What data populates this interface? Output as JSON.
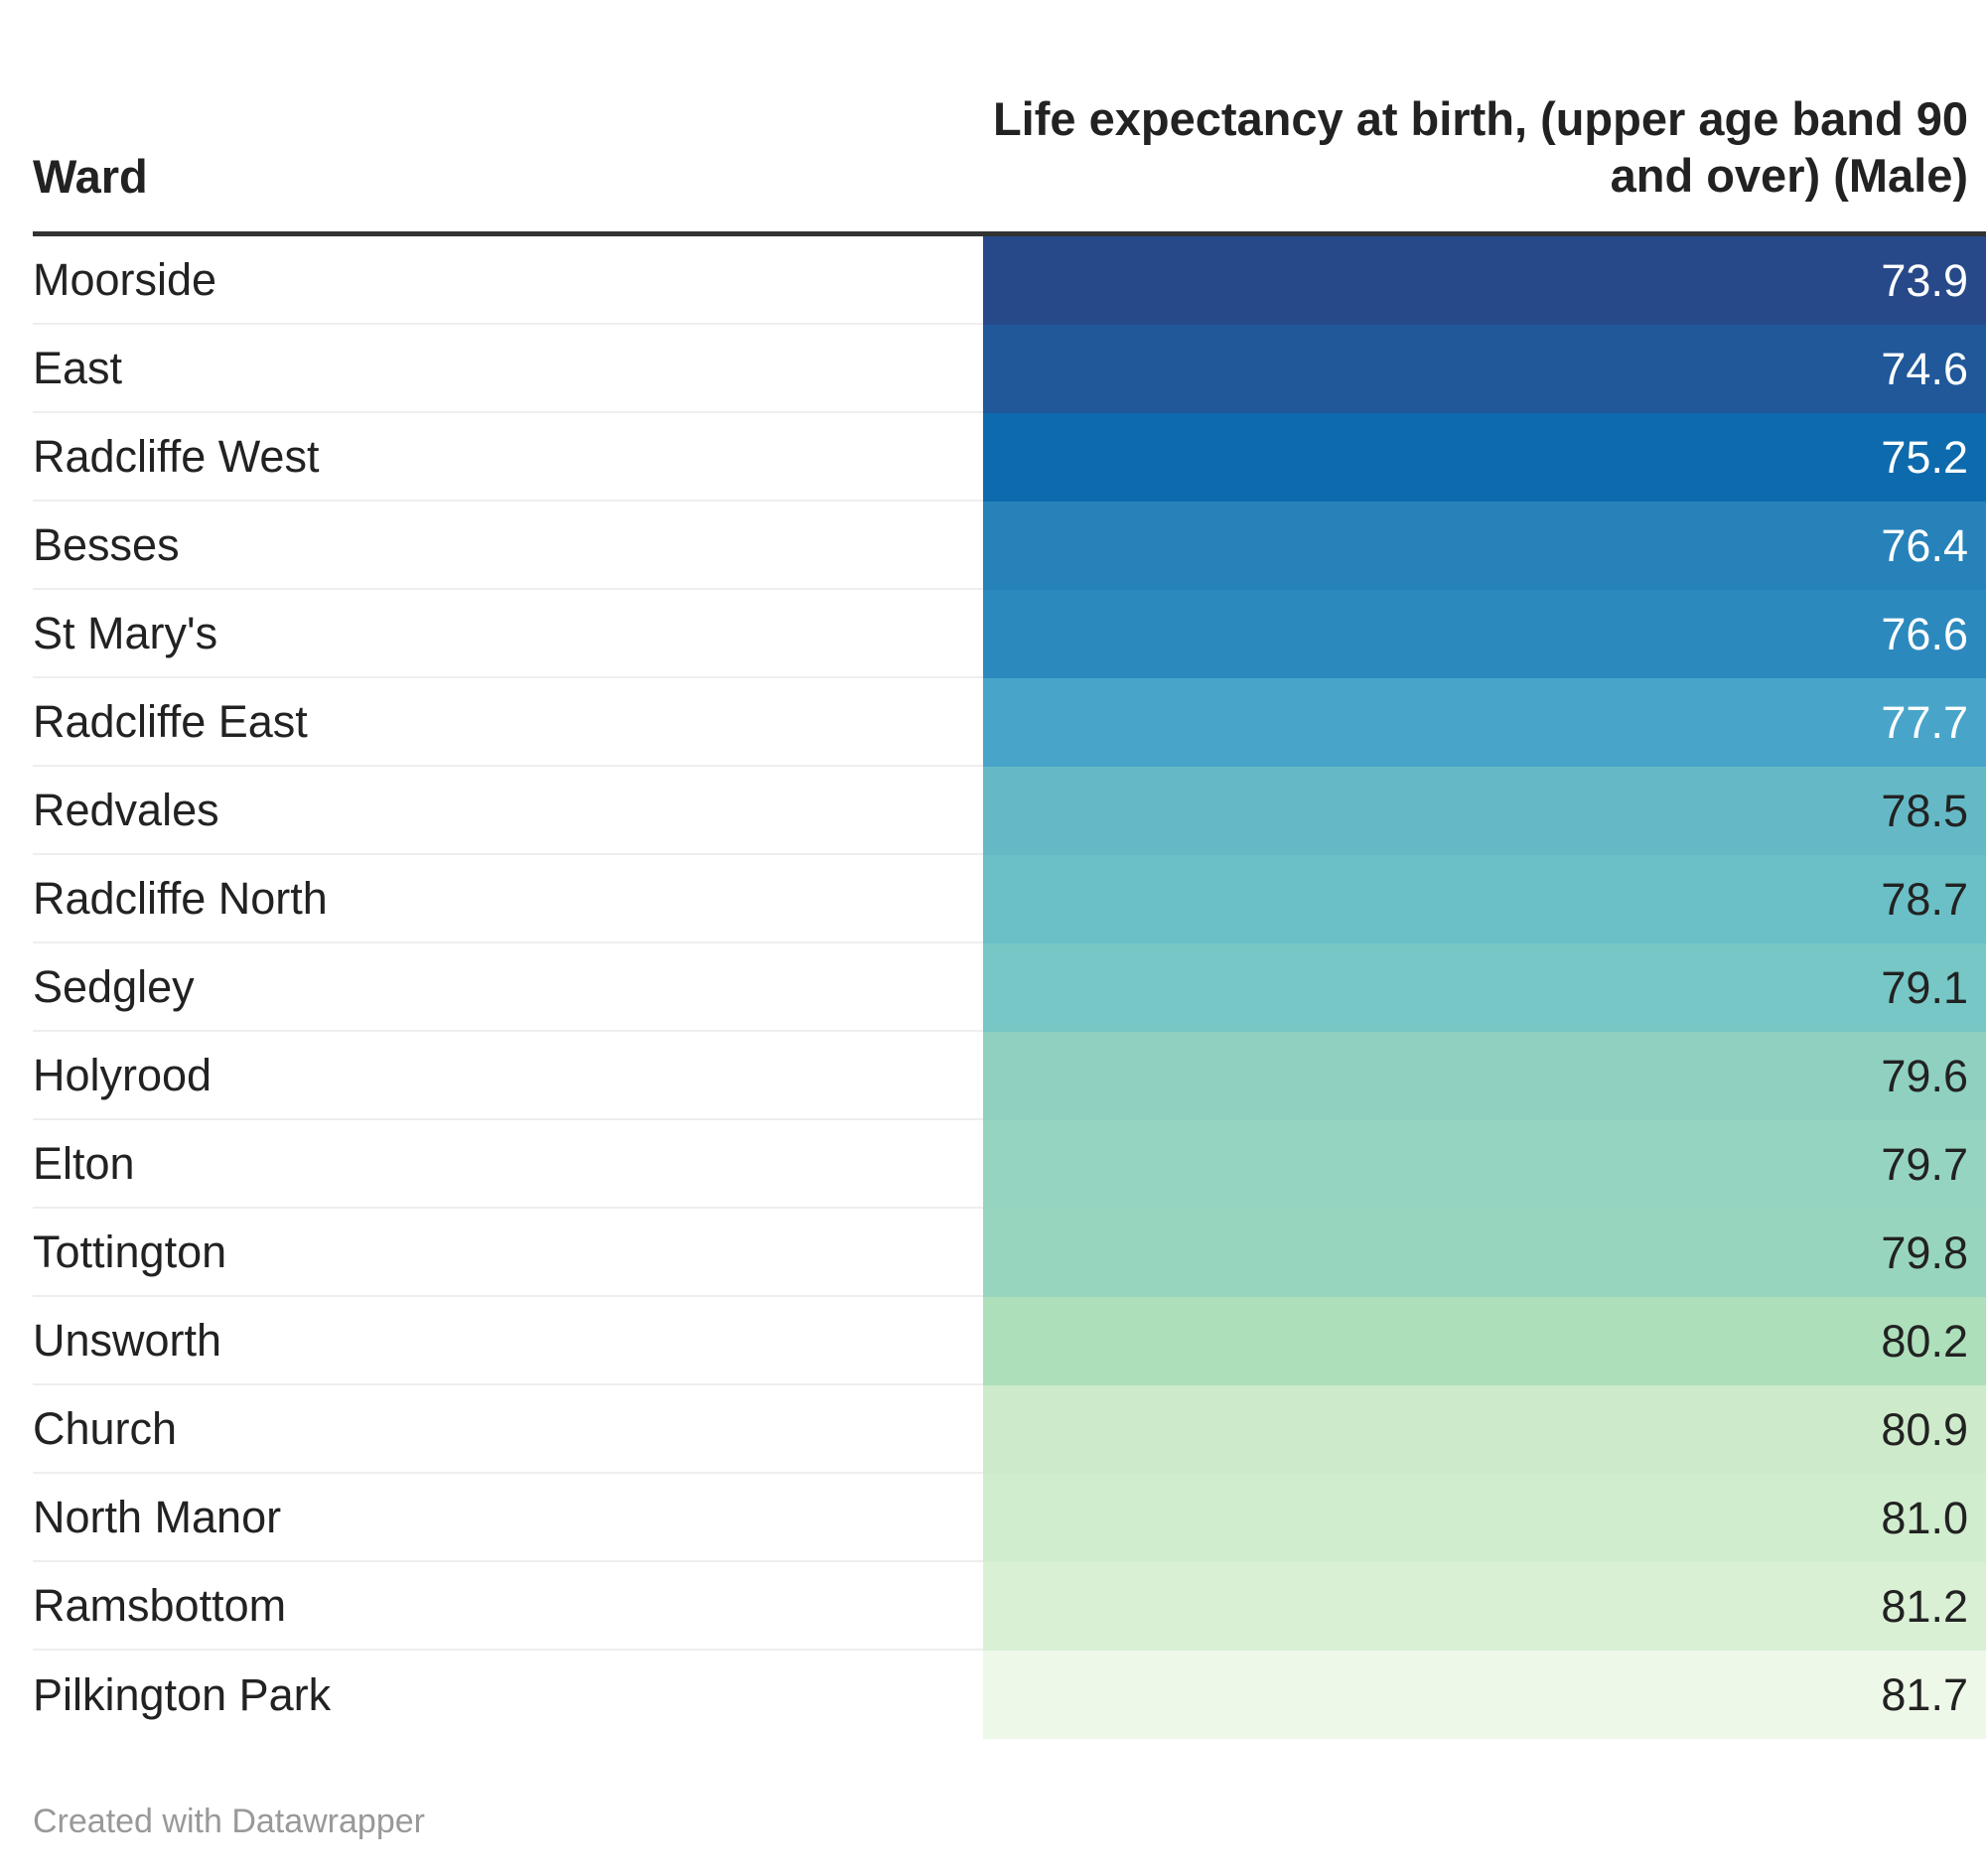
{
  "chart_data": {
    "type": "table",
    "columns": [
      "Ward",
      "Life expectancy at birth, (upper age band 90 and over) (Male)"
    ],
    "rows": [
      {
        "ward": "Moorside",
        "value": "73.9",
        "color": "#27498a",
        "text_color": "#ffffff"
      },
      {
        "ward": "East",
        "value": "74.6",
        "color": "#205899",
        "text_color": "#ffffff"
      },
      {
        "ward": "Radcliffe West",
        "value": "75.2",
        "color": "#0d6aad",
        "text_color": "#ffffff"
      },
      {
        "ward": "Besses",
        "value": "76.4",
        "color": "#2782ba",
        "text_color": "#ffffff"
      },
      {
        "ward": "St Mary's",
        "value": "76.6",
        "color": "#2c89be",
        "text_color": "#ffffff"
      },
      {
        "ward": "Radcliffe East",
        "value": "77.7",
        "color": "#48a5c9",
        "text_color": "#ffffff"
      },
      {
        "ward": "Redvales",
        "value": "78.5",
        "color": "#65b9c7",
        "text_color": "#222222"
      },
      {
        "ward": "Radcliffe North",
        "value": "78.7",
        "color": "#6bbfc6",
        "text_color": "#222222"
      },
      {
        "ward": "Sedgley",
        "value": "79.1",
        "color": "#76c7c5",
        "text_color": "#222222"
      },
      {
        "ward": "Holyrood",
        "value": "79.6",
        "color": "#8fd0c1",
        "text_color": "#222222"
      },
      {
        "ward": "Elton",
        "value": "79.7",
        "color": "#95d4c0",
        "text_color": "#222222"
      },
      {
        "ward": "Tottington",
        "value": "79.8",
        "color": "#98d5bf",
        "text_color": "#222222"
      },
      {
        "ward": "Unsworth",
        "value": "80.2",
        "color": "#addfbb",
        "text_color": "#222222"
      },
      {
        "ward": "Church",
        "value": "80.9",
        "color": "#cdebca",
        "text_color": "#222222"
      },
      {
        "ward": "North Manor",
        "value": "81.0",
        "color": "#d0edcd",
        "text_color": "#222222"
      },
      {
        "ward": "Ramsbottom",
        "value": "81.2",
        "color": "#daf0d5",
        "text_color": "#222222"
      },
      {
        "ward": "Pilkington Park",
        "value": "81.7",
        "color": "#eef8e8",
        "text_color": "#222222"
      }
    ]
  },
  "header": {
    "ward": "Ward",
    "value": "Life expectancy at birth, (upper age band 90 and over) (Male)"
  },
  "footer": {
    "credit": "Created with Datawrapper"
  }
}
